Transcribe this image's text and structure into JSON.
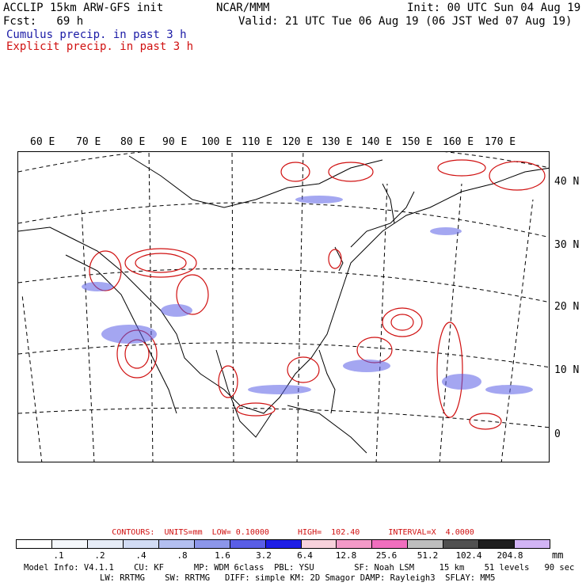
{
  "header": {
    "model_line": "ACCLIP 15km ARW-GFS init",
    "org": "NCAR/MMM",
    "init": "Init: 00 UTC Sun 04 Aug 19",
    "fcst": "Fcst:   69 h",
    "valid": "Valid: 21 UTC Tue 06 Aug 19 (06 JST Wed 07 Aug 19)",
    "legend_cumulus": "Cumulus precip. in past 3 h",
    "legend_explicit": "Explicit precip. in past 3 h"
  },
  "map": {
    "lon_labels": [
      "60 E",
      "70 E",
      "80 E",
      "90 E",
      "100 E",
      "110 E",
      "120 E",
      "130 E",
      "140 E",
      "150 E",
      "160 E",
      "170 E"
    ],
    "lat_labels": [
      "40 N",
      "30 N",
      "20 N",
      "10 N",
      "0"
    ]
  },
  "contours_line": "CONTOURS:  UNITS=mm  LOW= 0.10000      HIGH=  102.40      INTERVAL=X  4.0000",
  "colorbar": {
    "units": "mm",
    "tick_labels": [
      ".1",
      ".2",
      ".4",
      ".8",
      "1.6",
      "3.2",
      "6.4",
      "12.8",
      "25.6",
      "51.2",
      "102.4",
      "204.8"
    ],
    "colors": [
      "#ffffff",
      "#f4f7fb",
      "#e6ecf7",
      "#d2dcf5",
      "#b3bff0",
      "#8c96ea",
      "#5a5ee6",
      "#1e1ee6",
      "#f8d2dc",
      "#f39ac8",
      "#f06ebe",
      "#bebebe",
      "#505050",
      "#1e1e1e",
      "#d2b4f5"
    ]
  },
  "footer": {
    "line1": "Model Info: V4.1.1    CU: KF      MP: WDM 6class  PBL: YSU        SF: Noah LSM     15 km    51 levels   90 sec",
    "line2": "LW: RRTMG    SW: RRTMG   DIFF: simple KM: 2D Smagor DAMP: Rayleigh3  SFLAY: MM5"
  }
}
